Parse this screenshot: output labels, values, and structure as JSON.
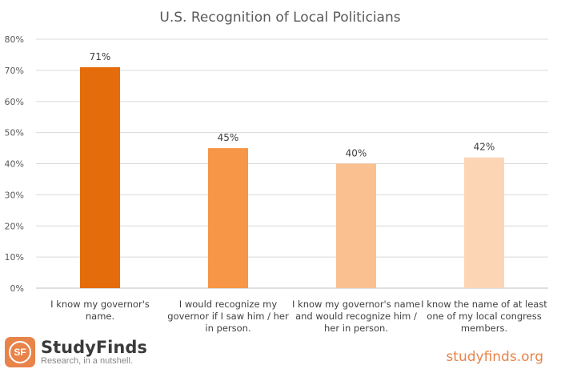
{
  "chart_data": {
    "type": "bar",
    "title": "U.S. Recognition of Local Politicians",
    "categories": [
      [
        "I know my governor's",
        "name."
      ],
      [
        "I would recognize my",
        "governor if I saw him / her",
        "in person."
      ],
      [
        "I know my governor's name",
        "and would recognize him /",
        "her in person."
      ],
      [
        "I know the name of at least",
        "one of my local congress",
        "members."
      ]
    ],
    "values": [
      71,
      45,
      40,
      42
    ],
    "data_labels": [
      "71%",
      "45%",
      "40%",
      "42%"
    ],
    "colors": [
      "#E46C0A",
      "#F79646",
      "#FAC090",
      "#FCD5B5"
    ],
    "ylim": [
      0,
      80
    ],
    "yticks": [
      0,
      10,
      20,
      30,
      40,
      50,
      60,
      70,
      80
    ],
    "ytick_labels": [
      "0%",
      "10%",
      "20%",
      "30%",
      "40%",
      "50%",
      "60%",
      "70%",
      "80%"
    ],
    "grid": true,
    "xlabel": "",
    "ylabel": ""
  },
  "footer": {
    "brand": "StudyFinds",
    "logo_letters": "SF",
    "tagline": "Research, in a nutshell.",
    "site": "studyfinds.org"
  }
}
